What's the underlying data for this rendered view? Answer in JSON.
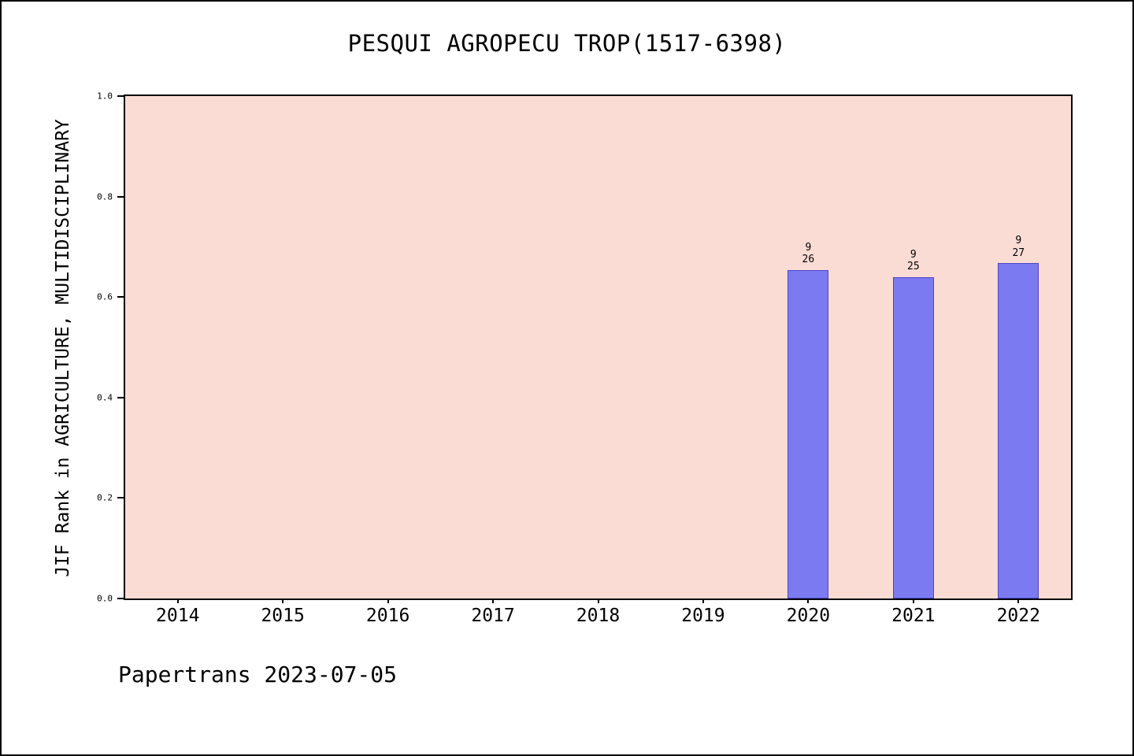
{
  "title": "PESQUI AGROPECU TROP(1517-6398)",
  "footer": "Papertrans 2023-07-05",
  "chart_data": {
    "type": "bar",
    "title": "PESQUI AGROPECU TROP(1517-6398)",
    "categories": [
      "2014",
      "2015",
      "2016",
      "2017",
      "2018",
      "2019",
      "2020",
      "2021",
      "2022"
    ],
    "values": [
      null,
      null,
      null,
      null,
      null,
      null,
      0.654,
      0.64,
      0.667
    ],
    "bar_labels": [
      null,
      null,
      null,
      null,
      null,
      null,
      [
        "9",
        "26"
      ],
      [
        "9",
        "25"
      ],
      [
        "9",
        "27"
      ]
    ],
    "xlabel": "",
    "ylabel": "JIF Rank in AGRICULTURE, MULTIDISCIPLINARY",
    "ylim": [
      0,
      1
    ],
    "yticks": [
      0.0,
      0.2,
      0.4,
      0.6,
      0.8,
      1.0
    ],
    "grid": false,
    "legend": "none",
    "colors": {
      "plot_background": "#fbdcd5",
      "bar_fill": "#7c7af0",
      "bar_edge": "#4a48c8",
      "axis": "#000000"
    }
  }
}
